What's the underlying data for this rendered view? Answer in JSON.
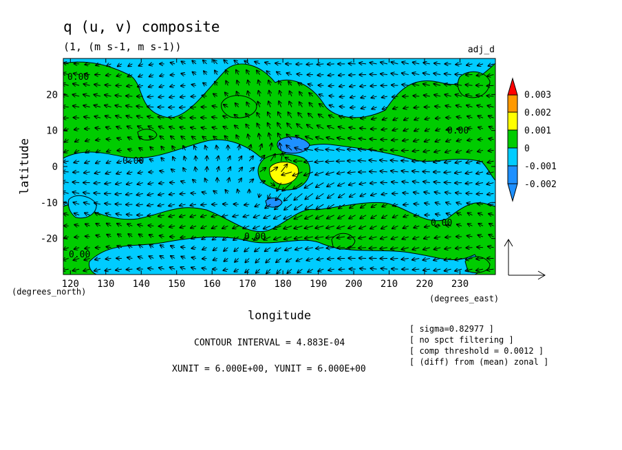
{
  "chart_data": {
    "type": "contour",
    "title": "q (u, v) composite",
    "subtitle": "(1, (m s-1, m s-1))",
    "panel_label": "adj_d",
    "xlabel": "longitude",
    "ylabel": "latitude",
    "x_unit_label": "(degrees_east)",
    "y_unit_label": "(degrees_north)",
    "xlim": [
      118,
      240
    ],
    "ylim": [
      -30,
      30
    ],
    "x_ticks": [
      120,
      130,
      140,
      150,
      160,
      170,
      180,
      190,
      200,
      210,
      220,
      230
    ],
    "y_ticks": [
      -20,
      -10,
      0,
      10,
      20
    ],
    "contour_label_text": "0.00",
    "colorbar": {
      "labels": [
        "0.003",
        "0.002",
        "0.001",
        "0",
        "-0.001",
        "-0.002"
      ],
      "colors": [
        "#ff0000",
        "#ff9900",
        "#ffff00",
        "#00cc00",
        "#00ccff",
        "#1e90ff"
      ]
    },
    "notes": {
      "contour_interval": "CONTOUR INTERVAL = 4.883E-04",
      "units": "XUNIT = 6.000E+00, YUNIT = 6.000E+00"
    },
    "settings": [
      "[ sigma=0.82977 ]",
      "[ no spct filtering ]",
      "[ comp threshold = 0.0012 ]",
      "[ (diff) from (mean) zonal ]"
    ]
  }
}
